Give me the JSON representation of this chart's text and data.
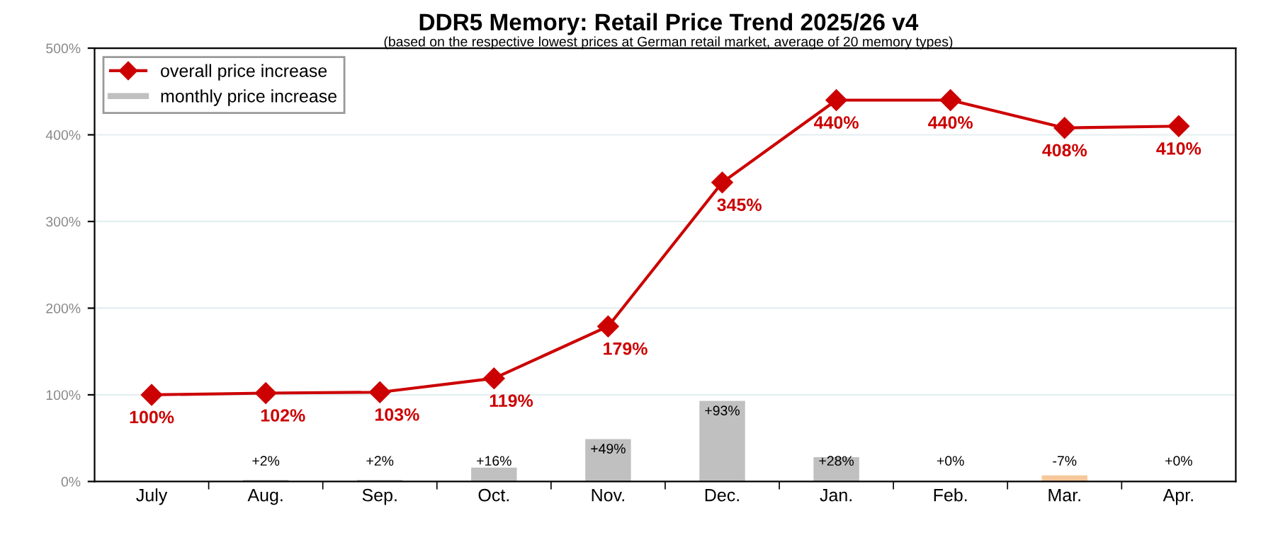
{
  "chart_data": {
    "type": "line",
    "title": "DDR5 Memory: Retail Price Trend 2025/26 v4",
    "subtitle": "(based on the respective lowest prices at German retail market, average of 20 memory types)",
    "categories": [
      "July",
      "Aug.",
      "Sep.",
      "Oct.",
      "Nov.",
      "Dec.",
      "Jan.",
      "Feb.",
      "Mar.",
      "Apr."
    ],
    "series": [
      {
        "name": "monthly price increase",
        "type": "bar",
        "color": "#c0c0c0",
        "colors": [
          "#c0c0c0",
          "#c0c0c0",
          "#c0c0c0",
          "#c0c0c0",
          "#c0c0c0",
          "#c0c0c0",
          "#c0c0c0",
          "#c0c0c0",
          "#f7c89b",
          "#c0c0c0"
        ],
        "values": [
          null,
          2,
          2,
          16,
          49,
          93,
          28,
          0,
          -7,
          0
        ],
        "base": [
          null,
          null,
          null,
          null,
          null,
          null,
          null,
          null,
          7,
          null
        ],
        "value_labels": [
          null,
          "+2%",
          "+2%",
          "+16%",
          "+49%",
          "+93%",
          "+28%",
          "+0%",
          "-7%",
          "+0%"
        ]
      },
      {
        "name": "overall price increase",
        "color": "#cc0000",
        "marker": "diamond",
        "values": [
          100,
          102,
          103,
          119,
          179,
          345,
          440,
          440,
          408,
          410
        ],
        "value_labels": [
          "100%",
          "102%",
          "103%",
          "119%",
          "179%",
          "345%",
          "440%",
          "440%",
          "408%",
          "410%"
        ]
      }
    ],
    "ylim": [
      0,
      500
    ],
    "yticks": [
      {
        "value": 0,
        "label": "0%"
      },
      {
        "value": 100,
        "label": "100%"
      },
      {
        "value": 200,
        "label": "200%"
      },
      {
        "value": 300,
        "label": "300%"
      },
      {
        "value": 400,
        "label": "400%"
      },
      {
        "value": 500,
        "label": "500%"
      }
    ],
    "grid": "y",
    "legend": "top left"
  }
}
